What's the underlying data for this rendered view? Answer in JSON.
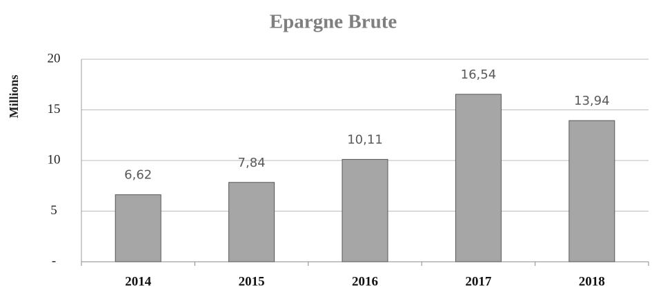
{
  "chart_data": {
    "type": "bar",
    "title": "Epargne Brute",
    "y_label": "Millions",
    "categories": [
      "2014",
      "2015",
      "2016",
      "2017",
      "2018"
    ],
    "values": [
      6.62,
      7.84,
      10.11,
      16.54,
      13.94
    ],
    "value_labels": [
      "6,62",
      "7,84",
      "10,11",
      "16,54",
      "13,94"
    ],
    "color": "#a6a6a6",
    "ylim": [
      0,
      20
    ],
    "yticks": [
      {
        "value": 0,
        "label": "-"
      },
      5,
      10,
      15,
      20
    ],
    "grid": true
  }
}
